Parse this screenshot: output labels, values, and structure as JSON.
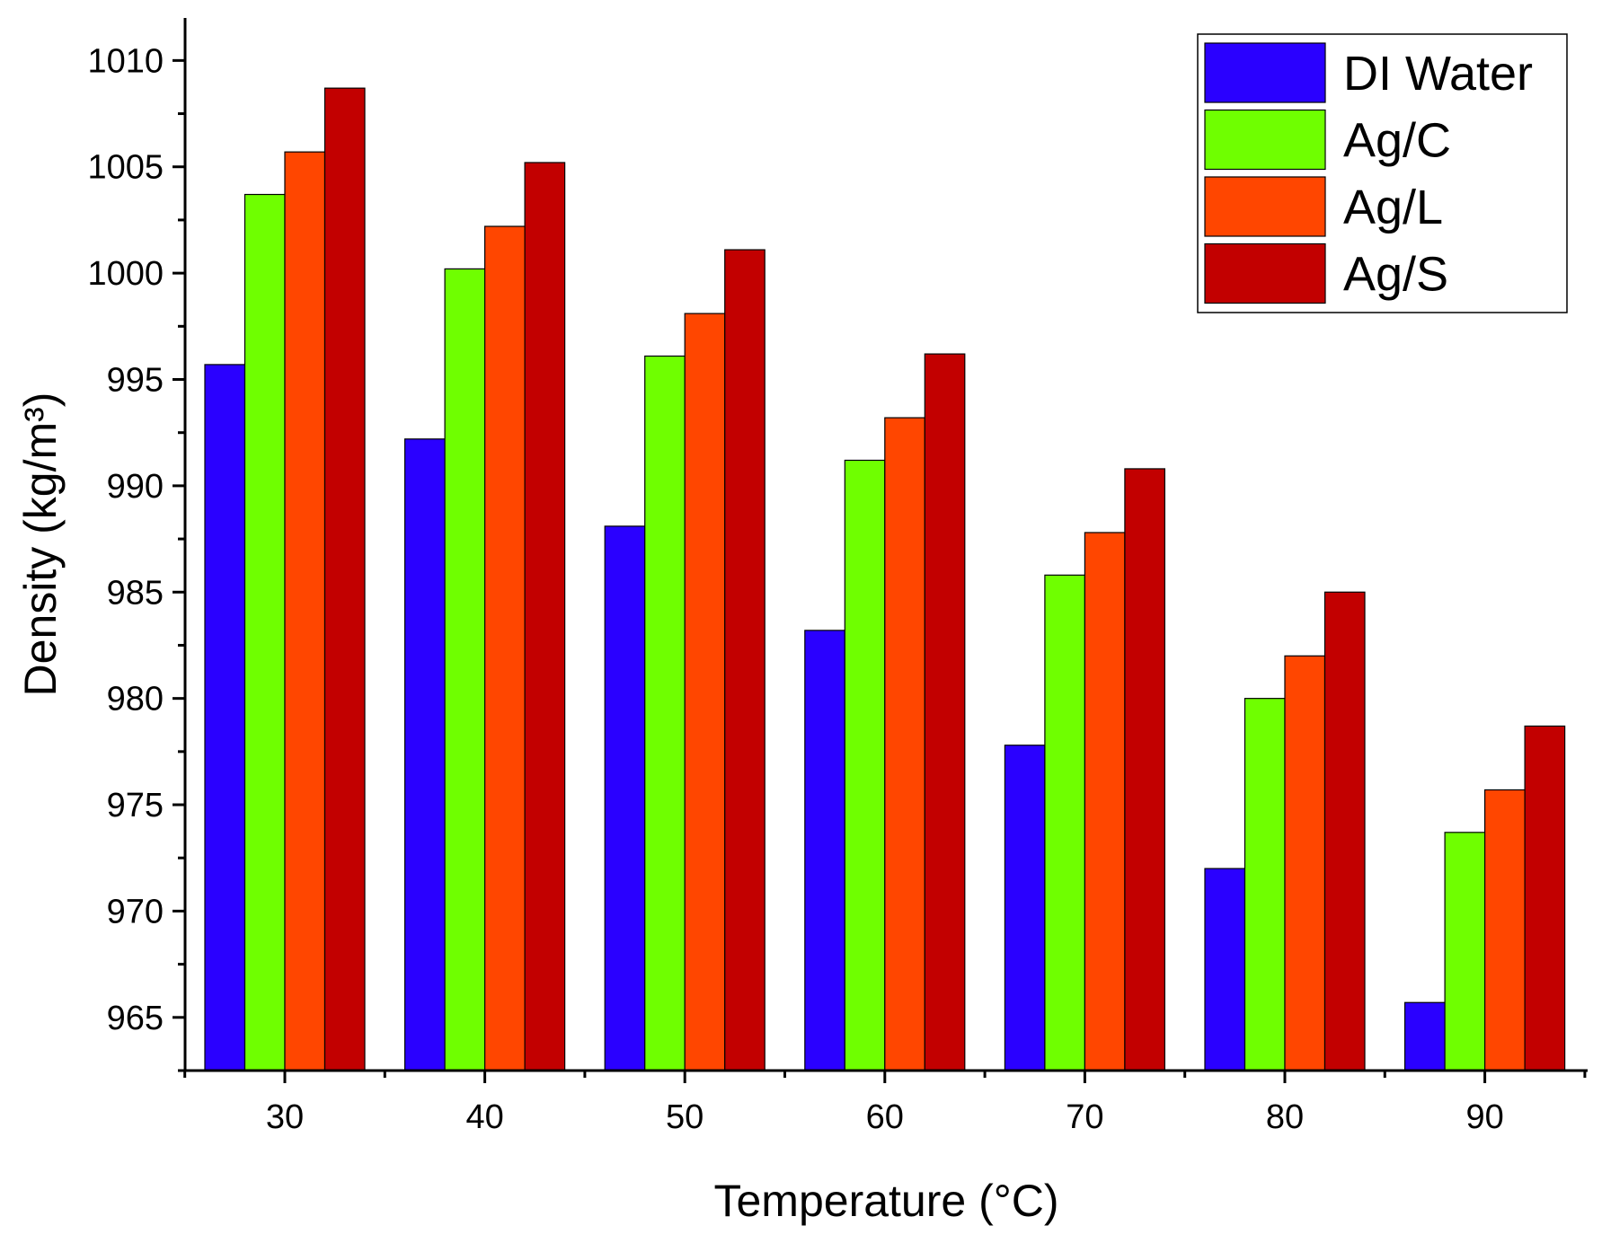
{
  "chart_data": {
    "type": "bar",
    "title": "",
    "xlabel": "Temperature (°C)",
    "ylabel": "Density (kg/m³)",
    "categories": [
      "30",
      "40",
      "50",
      "60",
      "70",
      "80",
      "90"
    ],
    "ylim": [
      962.5,
      1012
    ],
    "yticks": [
      "965",
      "970",
      "975",
      "980",
      "985",
      "990",
      "995",
      "1000",
      "1005",
      "1010"
    ],
    "legend_position": "top-right",
    "series": [
      {
        "name": "DI Water",
        "color": "#2a00ff",
        "values": [
          995.7,
          992.2,
          988.1,
          983.2,
          977.8,
          972.0,
          965.7
        ]
      },
      {
        "name": "Ag/C",
        "color": "#6fff00",
        "values": [
          1003.7,
          1000.2,
          996.1,
          991.2,
          985.8,
          980.0,
          973.7
        ]
      },
      {
        "name": "Ag/L",
        "color": "#ff4600",
        "values": [
          1005.7,
          1002.2,
          998.1,
          993.2,
          987.8,
          982.0,
          975.7
        ]
      },
      {
        "name": "Ag/S",
        "color": "#c20000",
        "values": [
          1008.7,
          1005.2,
          1001.1,
          996.2,
          990.8,
          985.0,
          978.7
        ]
      }
    ]
  }
}
